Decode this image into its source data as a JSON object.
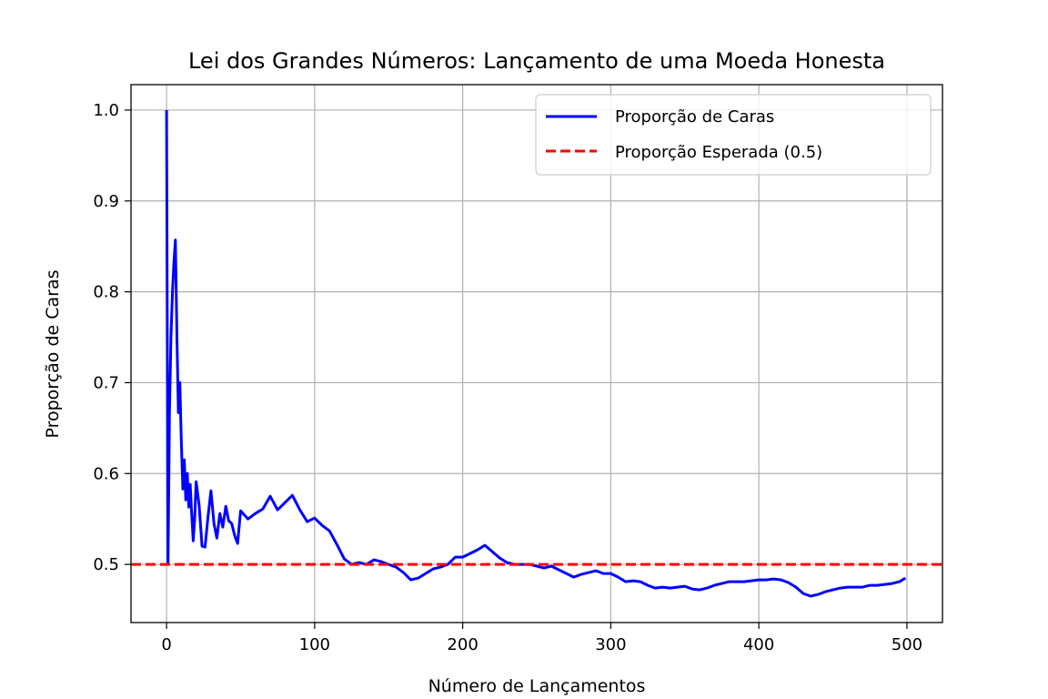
{
  "chart_data": {
    "type": "line",
    "title": "Lei dos Grandes Números: Lançamento de uma Moeda Honesta",
    "xlabel": "Número de Lançamentos",
    "ylabel": "Proporção de Caras",
    "xlim": [
      -24,
      524
    ],
    "ylim": [
      0.436,
      1.028
    ],
    "xticks": [
      0,
      100,
      200,
      300,
      400,
      500
    ],
    "xtick_labels": [
      "0",
      "100",
      "200",
      "300",
      "400",
      "500"
    ],
    "yticks": [
      0.5,
      0.6,
      0.7,
      0.8,
      0.9,
      1.0
    ],
    "ytick_labels": [
      "0.5",
      "0.6",
      "0.7",
      "0.8",
      "0.9",
      "1.0"
    ],
    "grid": true,
    "legend_position": "top-right",
    "series": [
      {
        "name": "Proporção de Caras",
        "color": "#0000ff",
        "style": "solid",
        "x": [
          0,
          1,
          2,
          3,
          4,
          5,
          6,
          7,
          8,
          9,
          10,
          11,
          12,
          13,
          14,
          15,
          16,
          17,
          18,
          19,
          20,
          22,
          24,
          26,
          28,
          30,
          32,
          34,
          36,
          38,
          40,
          42,
          44,
          46,
          48,
          50,
          55,
          60,
          65,
          70,
          75,
          80,
          85,
          90,
          95,
          100,
          105,
          110,
          115,
          120,
          125,
          130,
          135,
          140,
          145,
          150,
          155,
          160,
          165,
          170,
          175,
          180,
          185,
          190,
          195,
          200,
          205,
          210,
          215,
          220,
          225,
          230,
          235,
          240,
          245,
          250,
          255,
          260,
          265,
          270,
          275,
          280,
          285,
          290,
          295,
          300,
          305,
          310,
          315,
          320,
          325,
          330,
          335,
          340,
          345,
          350,
          355,
          360,
          365,
          370,
          375,
          380,
          385,
          390,
          395,
          400,
          405,
          410,
          415,
          420,
          425,
          430,
          435,
          440,
          445,
          450,
          455,
          460,
          465,
          470,
          475,
          480,
          485,
          490,
          495,
          499
        ],
        "y": [
          1.0,
          0.5,
          0.667,
          0.75,
          0.8,
          0.833,
          0.857,
          0.75,
          0.667,
          0.7,
          0.636,
          0.583,
          0.615,
          0.571,
          0.6,
          0.563,
          0.588,
          0.556,
          0.526,
          0.55,
          0.591,
          0.565,
          0.52,
          0.519,
          0.552,
          0.581,
          0.545,
          0.529,
          0.556,
          0.541,
          0.564,
          0.548,
          0.545,
          0.532,
          0.523,
          0.559,
          0.55,
          0.556,
          0.561,
          0.575,
          0.56,
          0.568,
          0.576,
          0.56,
          0.547,
          0.551,
          0.543,
          0.537,
          0.522,
          0.506,
          0.5,
          0.502,
          0.5,
          0.505,
          0.503,
          0.5,
          0.497,
          0.491,
          0.483,
          0.485,
          0.49,
          0.495,
          0.497,
          0.5,
          0.508,
          0.508,
          0.512,
          0.516,
          0.521,
          0.514,
          0.507,
          0.502,
          0.5,
          0.5,
          0.5,
          0.498,
          0.496,
          0.498,
          0.494,
          0.49,
          0.486,
          0.489,
          0.491,
          0.493,
          0.49,
          0.49,
          0.486,
          0.481,
          0.482,
          0.481,
          0.477,
          0.474,
          0.475,
          0.474,
          0.475,
          0.476,
          0.473,
          0.472,
          0.474,
          0.477,
          0.479,
          0.481,
          0.481,
          0.481,
          0.482,
          0.483,
          0.483,
          0.484,
          0.483,
          0.48,
          0.475,
          0.468,
          0.465,
          0.467,
          0.47,
          0.472,
          0.474,
          0.475,
          0.475,
          0.475,
          0.477,
          0.477,
          0.478,
          0.479,
          0.481,
          0.485
        ]
      },
      {
        "name": "Proporção Esperada (0.5)",
        "color": "#ff0000",
        "style": "dashed",
        "hline": 0.5
      }
    ]
  }
}
